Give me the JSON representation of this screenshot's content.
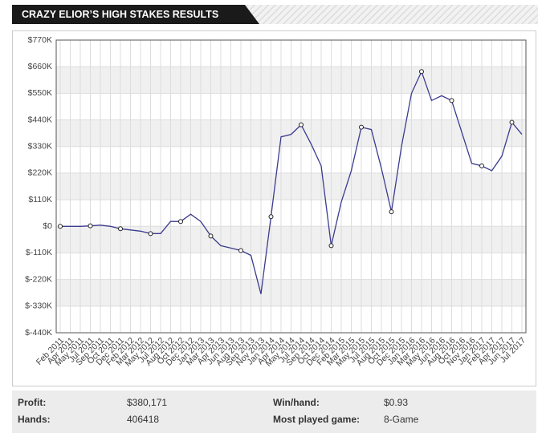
{
  "header": {
    "title": "CRAZY ELIOR’S HIGH STAKES RESULTS"
  },
  "chart_data": {
    "type": "line",
    "categories": [
      "Feb 2011",
      "Apr 2011",
      "May 2011",
      "Jul 2011",
      "Sep 2011",
      "Oct 2011",
      "Dec 2011",
      "Feb 2012",
      "Mar 2012",
      "May 2012",
      "Jul 2012",
      "Aug 2012",
      "Oct 2012",
      "Dec 2012",
      "Jan 2013",
      "Mar 2013",
      "Apr 2013",
      "Jun 2013",
      "Aug 2013",
      "Sep 2013",
      "Nov 2013",
      "Jan 2014",
      "Apr 2014",
      "May 2014",
      "Jul 2014",
      "Sep 2014",
      "Oct 2014",
      "Dec 2014",
      "Feb 2015",
      "Mar 2015",
      "May 2015",
      "Jul 2015",
      "Aug 2015",
      "Oct 2015",
      "Dec 2015",
      "Jan 2016",
      "Mar 2016",
      "May 2016",
      "Jun 2016",
      "Aug 2016",
      "Oct 2016",
      "Nov 2016",
      "Jan 2017",
      "Feb 2017",
      "Apr 2017",
      "Jun 2017",
      "Jul 2017"
    ],
    "series": [
      {
        "color": "#3b3b8f",
        "values": [
          0,
          0,
          0,
          2000,
          5000,
          0,
          -10000,
          -15000,
          -20000,
          -30000,
          -30000,
          20000,
          20000,
          50000,
          20000,
          -40000,
          -80000,
          -90000,
          -100000,
          -120000,
          -280000,
          40000,
          370000,
          380000,
          420000,
          340000,
          250000,
          -80000,
          100000,
          230000,
          410000,
          400000,
          240000,
          60000,
          330000,
          550000,
          640000,
          520000,
          540000,
          520000,
          390000,
          260000,
          250000,
          230000,
          290000,
          430000,
          380000
        ]
      }
    ],
    "ylim": [
      -440000,
      770000
    ],
    "yticks": [
      {
        "value": 770000,
        "label": "$770K"
      },
      {
        "value": 660000,
        "label": "$660K"
      },
      {
        "value": 550000,
        "label": "$550K"
      },
      {
        "value": 440000,
        "label": "$440K"
      },
      {
        "value": 330000,
        "label": "$330K"
      },
      {
        "value": 220000,
        "label": "$220K"
      },
      {
        "value": 110000,
        "label": "$110K"
      },
      {
        "value": 0,
        "label": "$0"
      },
      {
        "value": -110000,
        "label": "$-110K"
      },
      {
        "value": -220000,
        "label": "$-220K"
      },
      {
        "value": -330000,
        "label": "$-330K"
      },
      {
        "value": -440000,
        "label": "$-440K"
      }
    ],
    "grid": true
  },
  "stats": [
    {
      "label": "Profit:",
      "value": "$380,171"
    },
    {
      "label": "Win/hand:",
      "value": "$0.93"
    },
    {
      "label": "Hands:",
      "value": "406418"
    },
    {
      "label": "Most played game:",
      "value": "8-Game"
    }
  ]
}
